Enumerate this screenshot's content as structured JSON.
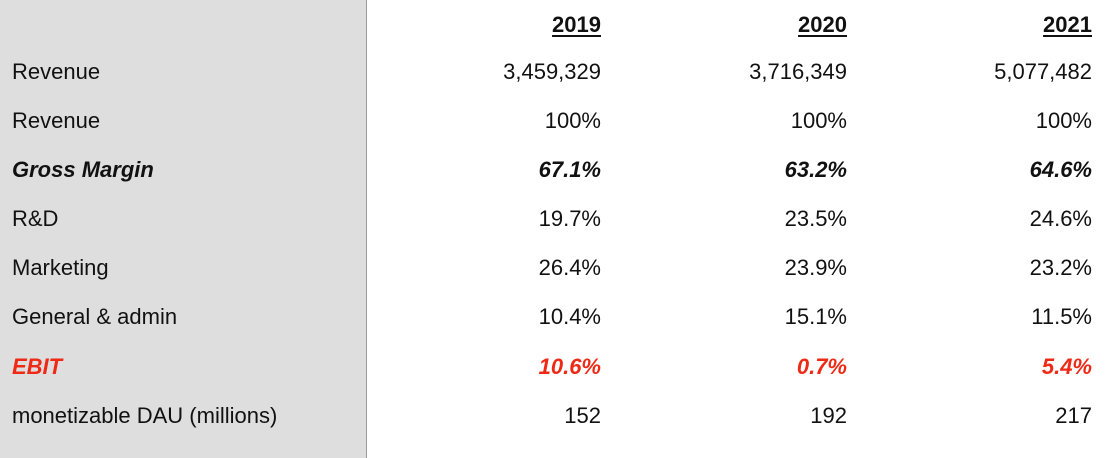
{
  "table": {
    "years": [
      "2019",
      "2020",
      "2021"
    ],
    "rows": [
      {
        "label": "Revenue",
        "values": [
          "3,459,329",
          "3,716,349",
          "5,077,482"
        ]
      },
      {
        "label": "Revenue",
        "values": [
          "100%",
          "100%",
          "100%"
        ]
      },
      {
        "label": "Gross Margin",
        "values": [
          "67.1%",
          "63.2%",
          "64.6%"
        ]
      },
      {
        "label": "R&D",
        "values": [
          "19.7%",
          "23.5%",
          "24.6%"
        ]
      },
      {
        "label": "Marketing",
        "values": [
          "26.4%",
          "23.9%",
          "23.2%"
        ]
      },
      {
        "label": "General & admin",
        "values": [
          "10.4%",
          "15.1%",
          "11.5%"
        ]
      },
      {
        "label": "EBIT",
        "values": [
          "10.6%",
          "0.7%",
          "5.4%"
        ]
      },
      {
        "label": "monetizable DAU (millions)",
        "values": [
          "152",
          "192",
          "217"
        ]
      }
    ]
  },
  "colors": {
    "label_column_bg": "#dedede",
    "ebit_red": "#ee2a17"
  }
}
